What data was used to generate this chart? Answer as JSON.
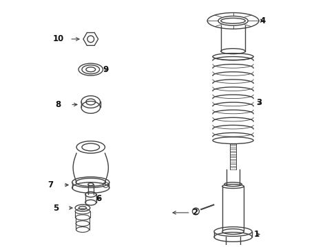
{
  "bg_color": "#ffffff",
  "line_color": "#404040",
  "label_color": "#111111",
  "fig_width": 4.89,
  "fig_height": 3.6,
  "dpi": 100
}
